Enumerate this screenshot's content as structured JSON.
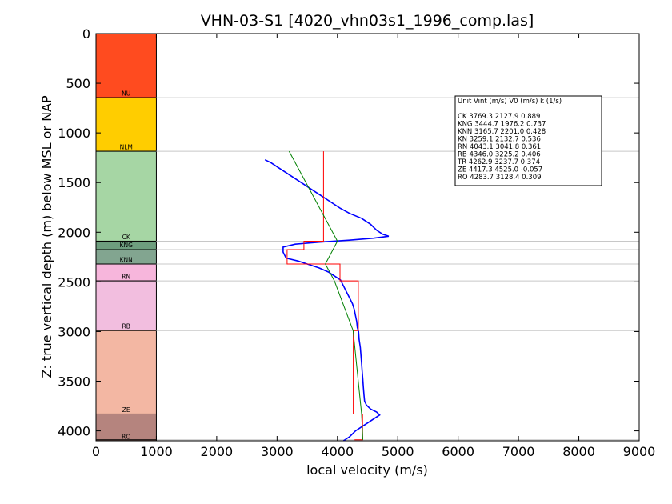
{
  "chart_data": {
    "type": "line",
    "title": "VHN-03-S1 [4020_vhn03s1_1996_comp.las]",
    "xlabel": "local velocity (m/s)",
    "ylabel": "Z: true vertical depth (m) below MSL or NAP",
    "xlim": [
      0,
      9000
    ],
    "ylim": [
      4100,
      0
    ],
    "x_ticks": [
      "0",
      "1000",
      "2000",
      "3000",
      "4000",
      "5000",
      "6000",
      "7000",
      "8000",
      "9000"
    ],
    "y_ticks": [
      "0",
      "500",
      "1000",
      "1500",
      "2000",
      "2500",
      "3000",
      "3500",
      "4000"
    ],
    "grid": "horizontal lines at unit boundaries",
    "units": [
      {
        "name": "NU",
        "top": 0,
        "base": 645,
        "color": "#ff4b1f"
      },
      {
        "name": "NLM",
        "top": 645,
        "base": 1185,
        "color": "#ffcd00"
      },
      {
        "name": "CK",
        "top": 1185,
        "base": 2090,
        "color": "#a6d6a4"
      },
      {
        "name": "KNG",
        "top": 2090,
        "base": 2175,
        "color": "#6e9e7e"
      },
      {
        "name": "KNN",
        "top": 2175,
        "base": 2320,
        "color": "#82a590"
      },
      {
        "name": "RN",
        "top": 2320,
        "base": 2490,
        "color": "#f7b6dc"
      },
      {
        "name": "RB",
        "top": 2490,
        "base": 2990,
        "color": "#f2bedf"
      },
      {
        "name": "TR",
        "top": 2990,
        "base": 3830,
        "color": "#f3b7a3"
      },
      {
        "name": "ZE",
        "top": 3830,
        "base": 4100,
        "color": "#b5847e"
      }
    ],
    "unit_labels": [
      {
        "text": "NU",
        "depth": 625
      },
      {
        "text": "NLM",
        "depth": 1165
      },
      {
        "text": "CK",
        "depth": 2070
      },
      {
        "text": "KNG",
        "depth": 2150
      },
      {
        "text": "KNN",
        "depth": 2300
      },
      {
        "text": "RN",
        "depth": 2470
      },
      {
        "text": "RB",
        "depth": 2970
      },
      {
        "text": "ZE",
        "depth": 3810
      },
      {
        "text": "RO",
        "depth": 4080
      }
    ],
    "boundaries": [
      645,
      1185,
      2090,
      2175,
      2320,
      2490,
      2990,
      3830,
      4090
    ],
    "series": [
      {
        "color": "#0000ff",
        "points": [
          [
            2800,
            1270
          ],
          [
            2900,
            1300
          ],
          [
            3000,
            1340
          ],
          [
            3150,
            1400
          ],
          [
            3300,
            1460
          ],
          [
            3450,
            1520
          ],
          [
            3600,
            1580
          ],
          [
            3750,
            1640
          ],
          [
            3900,
            1700
          ],
          [
            4050,
            1760
          ],
          [
            4200,
            1810
          ],
          [
            4400,
            1860
          ],
          [
            4550,
            1920
          ],
          [
            4650,
            1980
          ],
          [
            4750,
            2020
          ],
          [
            4850,
            2040
          ],
          [
            4600,
            2060
          ],
          [
            4200,
            2080
          ],
          [
            3700,
            2100
          ],
          [
            3300,
            2120
          ],
          [
            3100,
            2150
          ],
          [
            3100,
            2200
          ],
          [
            3150,
            2260
          ],
          [
            3350,
            2290
          ],
          [
            3500,
            2320
          ],
          [
            3700,
            2360
          ],
          [
            3850,
            2400
          ],
          [
            3950,
            2440
          ],
          [
            4050,
            2480
          ],
          [
            4100,
            2540
          ],
          [
            4150,
            2600
          ],
          [
            4200,
            2660
          ],
          [
            4250,
            2720
          ],
          [
            4280,
            2780
          ],
          [
            4300,
            2840
          ],
          [
            4320,
            2900
          ],
          [
            4330,
            2960
          ],
          [
            4350,
            3000
          ],
          [
            4360,
            3080
          ],
          [
            4380,
            3160
          ],
          [
            4390,
            3240
          ],
          [
            4400,
            3320
          ],
          [
            4410,
            3400
          ],
          [
            4420,
            3480
          ],
          [
            4430,
            3560
          ],
          [
            4440,
            3640
          ],
          [
            4450,
            3700
          ],
          [
            4480,
            3740
          ],
          [
            4550,
            3780
          ],
          [
            4650,
            3810
          ],
          [
            4700,
            3840
          ],
          [
            4600,
            3880
          ],
          [
            4500,
            3920
          ],
          [
            4400,
            3960
          ],
          [
            4300,
            4000
          ],
          [
            4200,
            4060
          ],
          [
            4100,
            4100
          ]
        ]
      },
      {
        "color": "#ff0000",
        "points": [
          [
            3769,
            1185
          ],
          [
            3769,
            2090
          ],
          [
            3445,
            2090
          ],
          [
            3445,
            2175
          ],
          [
            3166,
            2175
          ],
          [
            3166,
            2320
          ],
          [
            4043,
            2320
          ],
          [
            4043,
            2490
          ],
          [
            4346,
            2490
          ],
          [
            4346,
            2990
          ],
          [
            4263,
            2990
          ],
          [
            4263,
            3830
          ],
          [
            4417,
            3830
          ],
          [
            4417,
            4090
          ],
          [
            4284,
            4090
          ]
        ]
      },
      {
        "color": "#008000",
        "points": [
          [
            3200,
            1185
          ],
          [
            4000,
            2090
          ],
          [
            3800,
            2320
          ],
          [
            3950,
            2490
          ],
          [
            4260,
            2990
          ],
          [
            4400,
            3830
          ],
          [
            4420,
            4090
          ]
        ]
      }
    ],
    "legend": {
      "header": "Unit    Vint (m/s)      V0 (m/s)          k (1/s)",
      "rows": [
        "CK       3769.3  2127.9  0.889",
        "KNG       3444.7  1976.2  0.737",
        "KNN      3165.7  2201.0  0.428",
        "KN        3259.1  2132.7  0.536",
        "RN        4043.1  3041.8  0.361",
        "RB        4346.0  3225.2  0.406",
        "TR        4262.9  3237.7  0.374",
        "ZE        4417.3  4525.0  -0.057",
        "RO        4283.7  3128.4  0.309"
      ]
    }
  }
}
